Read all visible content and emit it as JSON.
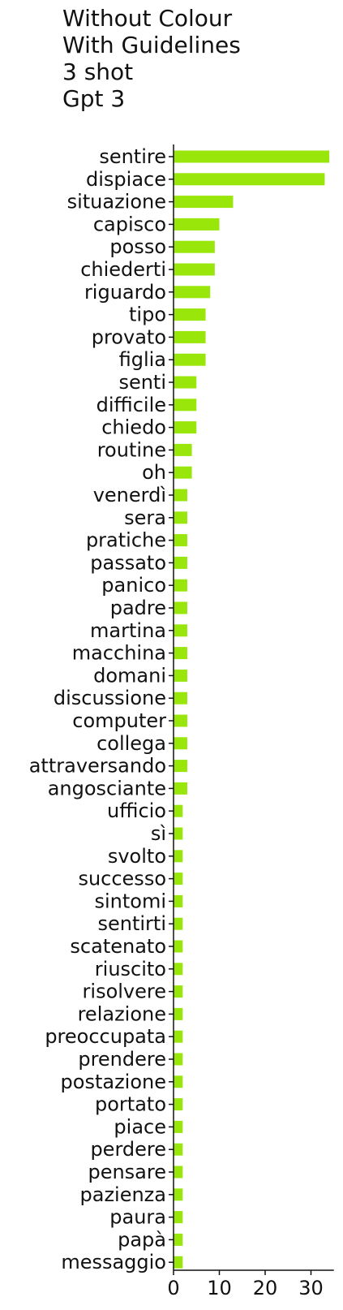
{
  "chart_data": {
    "type": "bar",
    "orientation": "horizontal",
    "title_lines": [
      "Without Colour",
      "With Guidelines",
      "3 shot",
      "Gpt 3"
    ],
    "xlabel": "",
    "ylabel": "",
    "bar_color": "#98e60a",
    "xlim": [
      0,
      35
    ],
    "xticks": [
      0,
      10,
      20,
      30
    ],
    "grid": false,
    "categories": [
      "sentire",
      "dispiace",
      "situazione",
      "capisco",
      "posso",
      "chiederti",
      "riguardo",
      "tipo",
      "provato",
      "figlia",
      "senti",
      "difficile",
      "chiedo",
      "routine",
      "oh",
      "venerdì",
      "sera",
      "pratiche",
      "passato",
      "panico",
      "padre",
      "martina",
      "macchina",
      "domani",
      "discussione",
      "computer",
      "collega",
      "attraversando",
      "angosciante",
      "ufficio",
      "sì",
      "svolto",
      "successo",
      "sintomi",
      "sentirti",
      "scatenato",
      "riuscito",
      "risolvere",
      "relazione",
      "preoccupata",
      "prendere",
      "postazione",
      "portato",
      "piace",
      "perdere",
      "pensare",
      "pazienza",
      "paura",
      "papà",
      "messaggio"
    ],
    "values": [
      34,
      33,
      13,
      10,
      9,
      9,
      8,
      7,
      7,
      7,
      5,
      5,
      5,
      4,
      4,
      3,
      3,
      3,
      3,
      3,
      3,
      3,
      3,
      3,
      3,
      3,
      3,
      3,
      3,
      2,
      2,
      2,
      2,
      2,
      2,
      2,
      2,
      2,
      2,
      2,
      2,
      2,
      2,
      2,
      2,
      2,
      2,
      2,
      2,
      2
    ]
  }
}
